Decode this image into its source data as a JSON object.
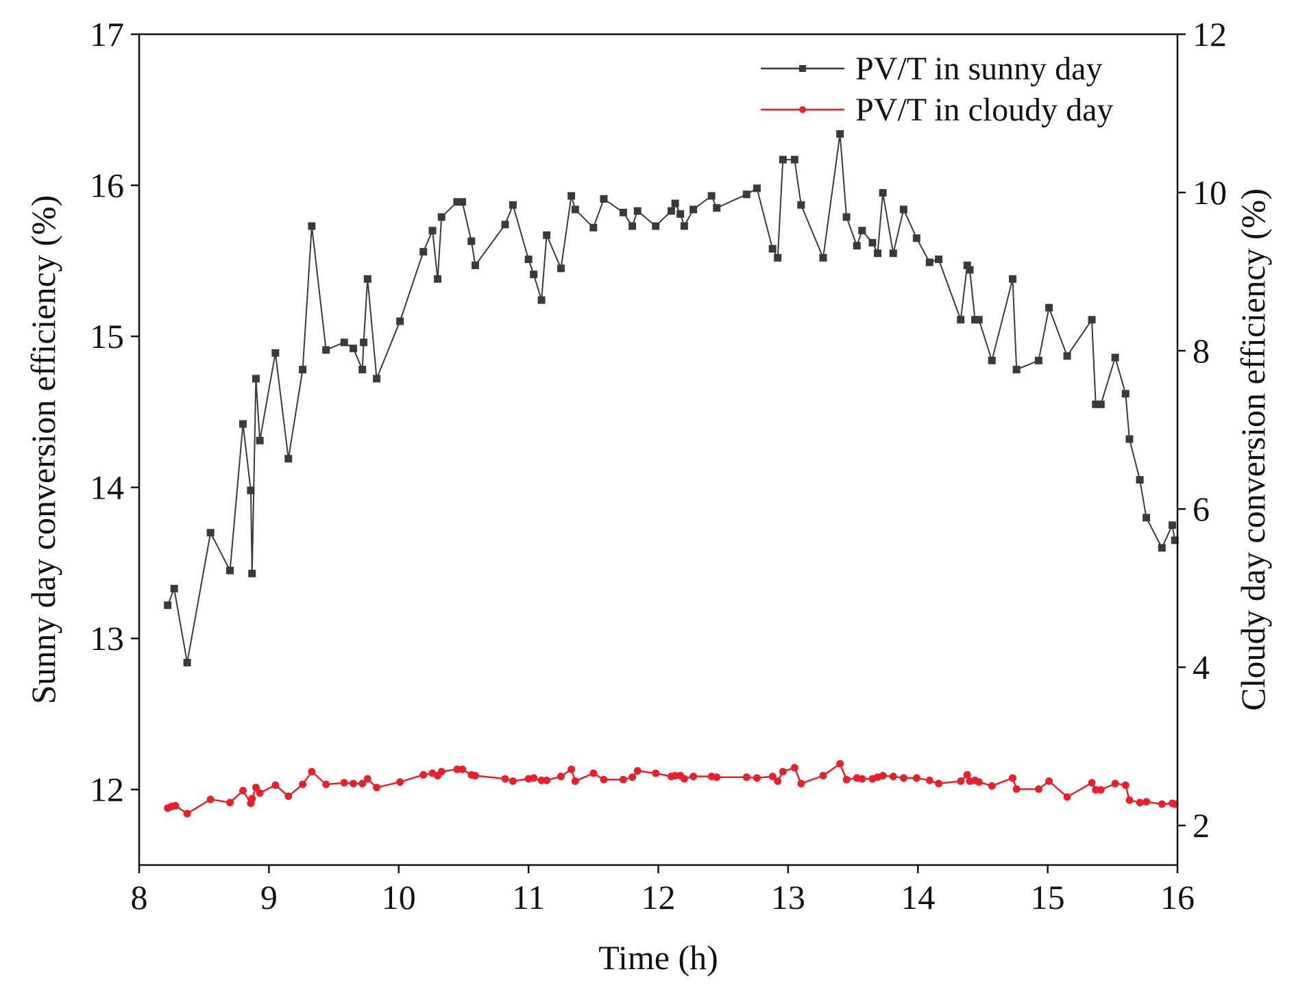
{
  "chart_data": {
    "type": "line",
    "title": "",
    "xlabel": "Time (h)",
    "ylabel": "Sunny day conversion efficiency (%)",
    "y2label": "Cloudy day conversion efficiency (%)",
    "xlim": [
      8,
      16
    ],
    "ylim": [
      11.5,
      17
    ],
    "y2lim": [
      1.5,
      12
    ],
    "xticks": [
      "8",
      "9",
      "10",
      "11",
      "12",
      "13",
      "14",
      "15",
      "16"
    ],
    "yticks": [
      "12",
      "13",
      "14",
      "15",
      "16",
      "17"
    ],
    "y2ticks": [
      "2",
      "4",
      "6",
      "8",
      "10",
      "12"
    ],
    "grid": false,
    "legend_position": "top-right",
    "series": [
      {
        "name": "PV/T in sunny day",
        "axis": "left",
        "color": "#3a3a3a",
        "marker": "square",
        "x": [
          8.22,
          8.27,
          8.37,
          8.55,
          8.7,
          8.8,
          8.86,
          8.87,
          8.9,
          8.93,
          9.05,
          9.15,
          9.26,
          9.33,
          9.44,
          9.58,
          9.65,
          9.72,
          9.73,
          9.76,
          9.83,
          10.01,
          10.19,
          10.26,
          10.3,
          10.33,
          10.45,
          10.49,
          10.56,
          10.59,
          10.82,
          10.88,
          11.0,
          11.04,
          11.1,
          11.14,
          11.25,
          11.33,
          11.36,
          11.5,
          11.58,
          11.73,
          11.8,
          11.84,
          11.98,
          12.1,
          12.13,
          12.17,
          12.2,
          12.27,
          12.41,
          12.45,
          12.68,
          12.76,
          12.88,
          12.92,
          12.96,
          13.05,
          13.1,
          13.27,
          13.4,
          13.45,
          13.53,
          13.57,
          13.65,
          13.69,
          13.73,
          13.81,
          13.89,
          13.99,
          14.09,
          14.16,
          14.33,
          14.38,
          14.4,
          14.44,
          14.47,
          14.57,
          14.73,
          14.76,
          14.93,
          15.01,
          15.15,
          15.34,
          15.37,
          15.41,
          15.52,
          15.6,
          15.63,
          15.71,
          15.76,
          15.88,
          15.96,
          15.98
        ],
        "y": [
          13.22,
          13.33,
          12.84,
          13.7,
          13.45,
          14.42,
          13.98,
          13.43,
          14.72,
          14.31,
          14.89,
          14.19,
          14.78,
          15.73,
          14.91,
          14.96,
          14.92,
          14.78,
          14.96,
          15.38,
          14.72,
          15.1,
          15.56,
          15.7,
          15.38,
          15.79,
          15.89,
          15.89,
          15.63,
          15.47,
          15.74,
          15.87,
          15.51,
          15.41,
          15.24,
          15.67,
          15.45,
          15.93,
          15.84,
          15.72,
          15.91,
          15.82,
          15.73,
          15.83,
          15.73,
          15.83,
          15.88,
          15.81,
          15.73,
          15.84,
          15.93,
          15.85,
          15.94,
          15.98,
          15.58,
          15.52,
          16.17,
          16.17,
          15.87,
          15.52,
          16.34,
          15.79,
          15.6,
          15.7,
          15.62,
          15.55,
          15.95,
          15.55,
          15.84,
          15.65,
          15.49,
          15.51,
          15.11,
          15.47,
          15.44,
          15.11,
          15.11,
          14.84,
          15.38,
          14.78,
          14.84,
          15.19,
          14.87,
          15.11,
          14.55,
          14.55,
          14.86,
          14.62,
          14.32,
          14.05,
          13.8,
          13.6,
          13.75,
          13.65
        ]
      },
      {
        "name": "PV/T in cloudy day",
        "axis": "right",
        "color": "#e8202a",
        "marker": "circle",
        "x": [
          8.22,
          8.25,
          8.28,
          8.37,
          8.55,
          8.7,
          8.8,
          8.86,
          8.87,
          8.9,
          8.93,
          9.05,
          9.15,
          9.26,
          9.33,
          9.44,
          9.58,
          9.65,
          9.72,
          9.76,
          9.83,
          10.01,
          10.19,
          10.26,
          10.3,
          10.33,
          10.45,
          10.49,
          10.56,
          10.59,
          10.82,
          10.88,
          11.0,
          11.04,
          11.1,
          11.14,
          11.25,
          11.33,
          11.36,
          11.5,
          11.58,
          11.73,
          11.8,
          11.84,
          11.98,
          12.1,
          12.13,
          12.17,
          12.2,
          12.27,
          12.41,
          12.45,
          12.68,
          12.76,
          12.88,
          12.92,
          12.96,
          13.05,
          13.1,
          13.27,
          13.4,
          13.45,
          13.53,
          13.57,
          13.65,
          13.69,
          13.73,
          13.81,
          13.89,
          13.99,
          14.09,
          14.16,
          14.33,
          14.38,
          14.4,
          14.44,
          14.47,
          14.57,
          14.73,
          14.76,
          14.93,
          15.01,
          15.15,
          15.34,
          15.37,
          15.41,
          15.52,
          15.6,
          15.63,
          15.71,
          15.76,
          15.88,
          15.96,
          15.98
        ],
        "y": [
          2.22,
          2.24,
          2.25,
          2.15,
          2.33,
          2.29,
          2.44,
          2.28,
          2.34,
          2.48,
          2.41,
          2.51,
          2.37,
          2.52,
          2.68,
          2.52,
          2.54,
          2.53,
          2.53,
          2.59,
          2.48,
          2.55,
          2.64,
          2.66,
          2.63,
          2.68,
          2.71,
          2.71,
          2.64,
          2.63,
          2.59,
          2.56,
          2.59,
          2.6,
          2.57,
          2.57,
          2.62,
          2.71,
          2.56,
          2.66,
          2.58,
          2.58,
          2.61,
          2.69,
          2.66,
          2.62,
          2.63,
          2.63,
          2.59,
          2.62,
          2.62,
          2.61,
          2.61,
          2.6,
          2.62,
          2.56,
          2.68,
          2.73,
          2.53,
          2.63,
          2.78,
          2.58,
          2.6,
          2.59,
          2.59,
          2.61,
          2.63,
          2.62,
          2.6,
          2.6,
          2.57,
          2.53,
          2.56,
          2.64,
          2.56,
          2.57,
          2.55,
          2.5,
          2.6,
          2.46,
          2.46,
          2.56,
          2.36,
          2.54,
          2.45,
          2.45,
          2.53,
          2.51,
          2.32,
          2.29,
          2.3,
          2.27,
          2.28,
          2.27
        ]
      }
    ]
  }
}
